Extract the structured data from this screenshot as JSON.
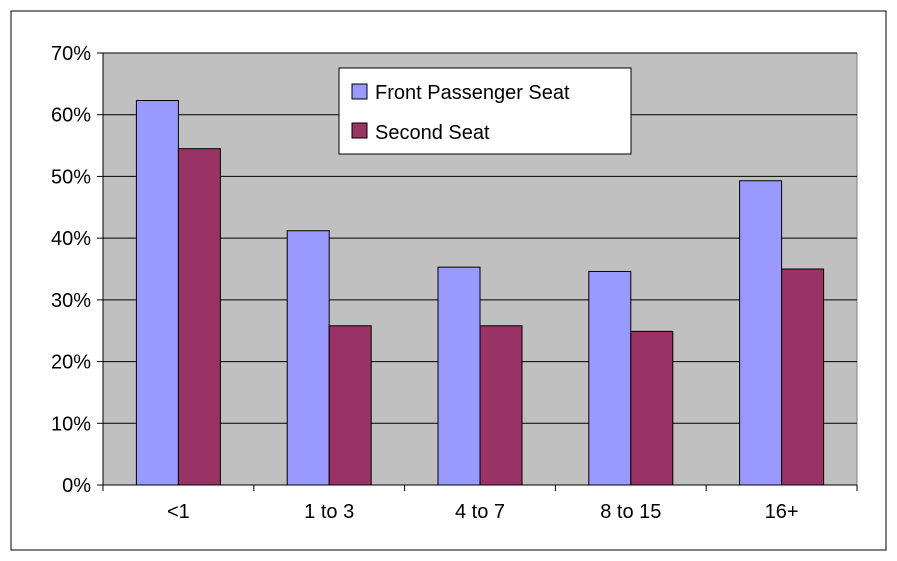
{
  "chart_data": {
    "type": "bar",
    "categories": [
      "<1",
      "1 to 3",
      "4 to 7",
      "8 to 15",
      "16+"
    ],
    "series": [
      {
        "name": "Front Passenger Seat",
        "values": [
          62.3,
          41.2,
          35.3,
          34.6,
          49.3
        ],
        "color": "#9999ff"
      },
      {
        "name": "Second Seat",
        "values": [
          54.5,
          25.8,
          25.8,
          24.9,
          35.0
        ],
        "color": "#993366"
      }
    ],
    "ylim": [
      0,
      70
    ],
    "yticks": [
      0,
      10,
      20,
      30,
      40,
      50,
      60,
      70
    ],
    "ytick_labels": [
      "0%",
      "10%",
      "20%",
      "30%",
      "40%",
      "50%",
      "60%",
      "70%"
    ],
    "grid": true,
    "legend_position": "top-center",
    "plot_background": "#c0c0c0"
  }
}
